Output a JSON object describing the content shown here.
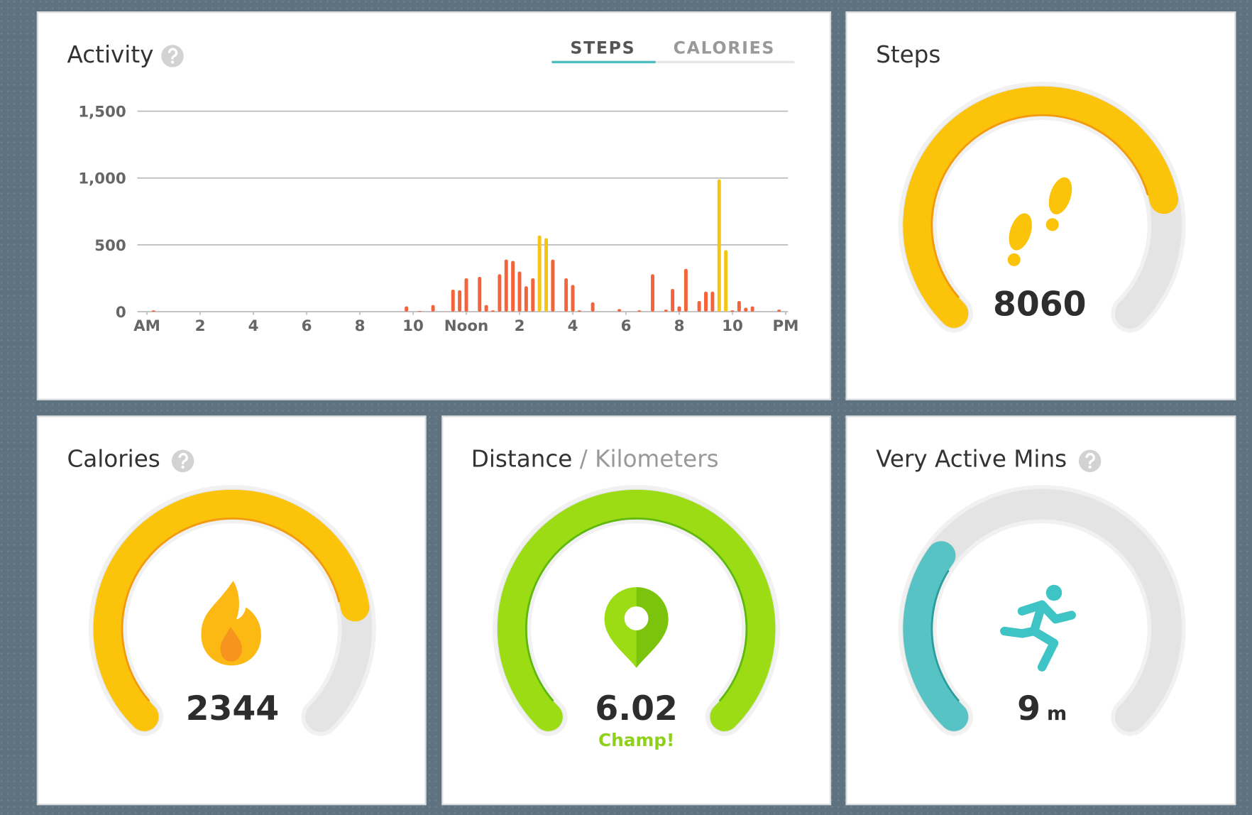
{
  "activity": {
    "title": "Activity",
    "tabs": [
      "STEPS",
      "CALORIES"
    ],
    "chart_data": {
      "type": "bar",
      "x": [
        0.25,
        9.75,
        10.25,
        10.75,
        11.5,
        11.75,
        12,
        12.5,
        12.75,
        13,
        13.25,
        13.5,
        13.75,
        14,
        14.25,
        14.5,
        14.75,
        15,
        15.25,
        15.75,
        16,
        16.25,
        16.75,
        17.75,
        18.5,
        19,
        19.5,
        19.75,
        20,
        20.25,
        20.75,
        21,
        21.25,
        21.5,
        21.75,
        22,
        22.25,
        22.5,
        22.75,
        23.75
      ],
      "values": [
        10,
        40,
        5,
        50,
        165,
        160,
        250,
        260,
        50,
        10,
        280,
        390,
        380,
        300,
        190,
        250,
        570,
        550,
        390,
        250,
        200,
        10,
        70,
        20,
        10,
        280,
        15,
        170,
        40,
        320,
        80,
        150,
        150,
        990,
        460,
        10,
        80,
        30,
        40,
        15
      ],
      "colors": [
        "#f3643c",
        "#f3643c",
        "#f3643c",
        "#f3643c",
        "#f3643c",
        "#f3643c",
        "#f3643c",
        "#f3643c",
        "#f3643c",
        "#f3643c",
        "#f3643c",
        "#f3643c",
        "#f3643c",
        "#f3643c",
        "#f3643c",
        "#f3643c",
        "#f5c515",
        "#f5c515",
        "#f3643c",
        "#f3643c",
        "#f3643c",
        "#f3643c",
        "#f3643c",
        "#f3643c",
        "#f3643c",
        "#f3643c",
        "#f3643c",
        "#f3643c",
        "#f3643c",
        "#f3643c",
        "#f3643c",
        "#f3643c",
        "#f3643c",
        "#f5c515",
        "#f5c515",
        "#f3643c",
        "#f3643c",
        "#f3643c",
        "#f3643c",
        "#f3643c"
      ],
      "xlim": [
        -0.36,
        24.09
      ],
      "xticks": [
        {
          "value": 0,
          "label": "AM"
        },
        2,
        4,
        6,
        8,
        10,
        {
          "value": 12,
          "label": "Noon"
        },
        {
          "value": 14,
          "label": "2"
        },
        {
          "value": 16,
          "label": "4"
        },
        {
          "value": 18,
          "label": "6"
        },
        {
          "value": 20,
          "label": "8"
        },
        {
          "value": 22,
          "label": "10"
        },
        {
          "value": 24,
          "label": "PM"
        }
      ],
      "ylim": [
        0,
        1500
      ],
      "yticks": [
        0,
        500,
        {
          "value": 1000,
          "label": "1,000"
        },
        {
          "value": 1500,
          "label": "1,500"
        }
      ],
      "grid": true
    }
  },
  "steps": {
    "title": "Steps",
    "value": 8060
  },
  "calories": {
    "title": "Calories",
    "value": 2344
  },
  "distance": {
    "title": "Distance",
    "unit": "/ Kilometers",
    "value": 6.02,
    "badge": "Champ!"
  },
  "very_active": {
    "title": "Very Active Mins",
    "value": 9,
    "unit": "m"
  }
}
